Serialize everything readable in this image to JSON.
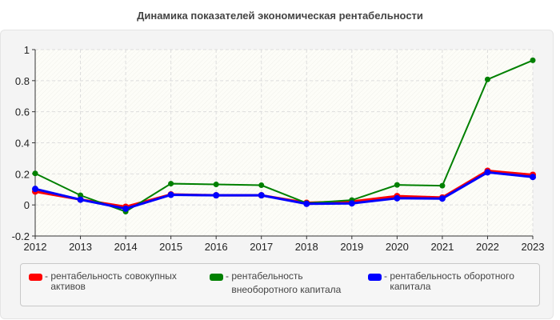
{
  "chart_data": {
    "type": "line",
    "title": "Динамика показателей экономическая рентабельности",
    "categories": [
      "2012",
      "2013",
      "2014",
      "2015",
      "2016",
      "2017",
      "2018",
      "2019",
      "2020",
      "2021",
      "2022",
      "2023"
    ],
    "ylim": [
      -0.2,
      1
    ],
    "yticks": [
      "-0.2",
      "0",
      "0.2",
      "0.4",
      "0.6",
      "0.8",
      "1"
    ],
    "grid": true,
    "legend_position": "bottom",
    "series": [
      {
        "name": "рентабельность совокупных активов",
        "color": "#ff0000",
        "values": [
          0.086,
          0.035,
          -0.012,
          0.068,
          0.062,
          0.062,
          0.014,
          0.022,
          0.057,
          0.048,
          0.22,
          0.194
        ]
      },
      {
        "name": "рентабельность внеоборотного капитала",
        "color": "#008000",
        "values": [
          0.203,
          0.062,
          -0.043,
          0.137,
          0.132,
          0.127,
          0.012,
          0.031,
          0.129,
          0.124,
          0.808,
          0.931
        ]
      },
      {
        "name": "рентабельность оборотного капитала",
        "color": "#0000ff",
        "values": [
          0.103,
          0.034,
          -0.024,
          0.065,
          0.062,
          0.062,
          0.007,
          0.01,
          0.043,
          0.041,
          0.21,
          0.18
        ]
      }
    ]
  }
}
